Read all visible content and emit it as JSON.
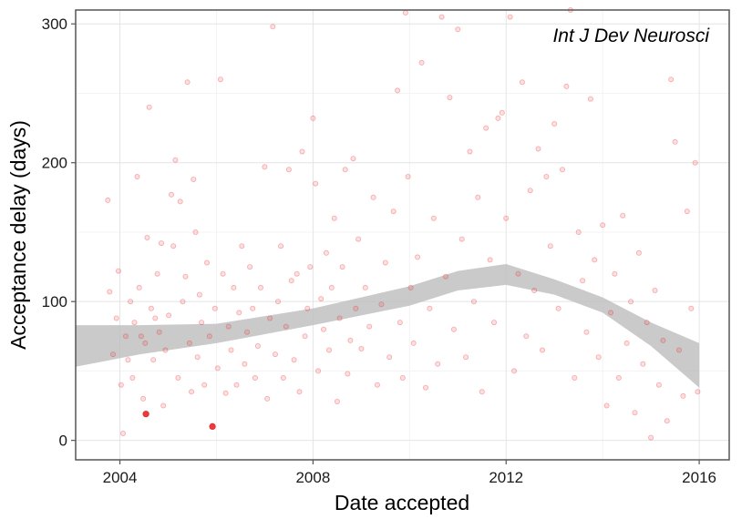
{
  "chart_data": {
    "type": "scatter",
    "title": "",
    "annotation": "Int J Dev Neurosci",
    "xlabel": "Date accepted",
    "ylabel": "Acceptance delay (days)",
    "x_ticks": [
      "2004",
      "2008",
      "2012",
      "2016"
    ],
    "y_ticks": [
      "0",
      "100",
      "200",
      "300"
    ],
    "xlim": [
      "2003-02-01",
      "2016-08-15"
    ],
    "ylim": [
      -14,
      310
    ],
    "grid": true,
    "legend": "none",
    "point_color": "#e8262a",
    "band_color": "#bdbdbd",
    "highlighted_points": [
      {
        "x": "2004-07-15",
        "y": 19
      },
      {
        "x": "2005-12-01",
        "y": 10
      }
    ],
    "smooth_band": [
      {
        "x": "2003-02-01",
        "low": 53,
        "high": 83
      },
      {
        "x": "2004-06-01",
        "low": 62,
        "high": 83
      },
      {
        "x": "2006-01-01",
        "low": 70,
        "high": 84
      },
      {
        "x": "2008-01-01",
        "low": 83,
        "high": 95
      },
      {
        "x": "2010-01-01",
        "low": 97,
        "high": 111
      },
      {
        "x": "2011-01-01",
        "low": 108,
        "high": 122
      },
      {
        "x": "2012-01-01",
        "low": 112,
        "high": 127
      },
      {
        "x": "2013-01-01",
        "low": 105,
        "high": 116
      },
      {
        "x": "2014-01-01",
        "low": 92,
        "high": 103
      },
      {
        "x": "2015-01-01",
        "low": 68,
        "high": 85
      },
      {
        "x": "2016-01-01",
        "low": 38,
        "high": 70
      }
    ],
    "points": [
      {
        "x": "2003-10-01",
        "y": 173
      },
      {
        "x": "2003-10-15",
        "y": 107
      },
      {
        "x": "2003-11-10",
        "y": 62
      },
      {
        "x": "2003-12-05",
        "y": 88
      },
      {
        "x": "2003-12-20",
        "y": 122
      },
      {
        "x": "2004-01-10",
        "y": 40
      },
      {
        "x": "2004-01-25",
        "y": 5
      },
      {
        "x": "2004-02-15",
        "y": 75
      },
      {
        "x": "2004-03-01",
        "y": 58
      },
      {
        "x": "2004-03-20",
        "y": 100
      },
      {
        "x": "2004-04-05",
        "y": 45
      },
      {
        "x": "2004-04-20",
        "y": 85
      },
      {
        "x": "2004-05-10",
        "y": 190
      },
      {
        "x": "2004-05-25",
        "y": 110
      },
      {
        "x": "2004-06-10",
        "y": 75
      },
      {
        "x": "2004-06-25",
        "y": 30
      },
      {
        "x": "2004-07-10",
        "y": 70
      },
      {
        "x": "2004-07-25",
        "y": 146
      },
      {
        "x": "2004-08-10",
        "y": 240
      },
      {
        "x": "2004-08-25",
        "y": 95
      },
      {
        "x": "2004-09-10",
        "y": 58
      },
      {
        "x": "2004-09-25",
        "y": 88
      },
      {
        "x": "2004-10-10",
        "y": 120
      },
      {
        "x": "2004-10-25",
        "y": 78
      },
      {
        "x": "2004-11-10",
        "y": 142
      },
      {
        "x": "2004-11-25",
        "y": 25
      },
      {
        "x": "2004-12-10",
        "y": 65
      },
      {
        "x": "2005-01-05",
        "y": 90
      },
      {
        "x": "2005-01-25",
        "y": 177
      },
      {
        "x": "2005-02-10",
        "y": 140
      },
      {
        "x": "2005-02-25",
        "y": 202
      },
      {
        "x": "2005-03-15",
        "y": 45
      },
      {
        "x": "2005-04-01",
        "y": 172
      },
      {
        "x": "2005-04-20",
        "y": 100
      },
      {
        "x": "2005-05-10",
        "y": 118
      },
      {
        "x": "2005-05-25",
        "y": 258
      },
      {
        "x": "2005-06-10",
        "y": 70
      },
      {
        "x": "2005-06-25",
        "y": 35
      },
      {
        "x": "2005-07-10",
        "y": 188
      },
      {
        "x": "2005-07-25",
        "y": 150
      },
      {
        "x": "2005-08-10",
        "y": 60
      },
      {
        "x": "2005-08-25",
        "y": 105
      },
      {
        "x": "2005-09-10",
        "y": 85
      },
      {
        "x": "2005-10-01",
        "y": 40
      },
      {
        "x": "2005-10-20",
        "y": 128
      },
      {
        "x": "2005-11-10",
        "y": 75
      },
      {
        "x": "2005-12-20",
        "y": 95
      },
      {
        "x": "2006-01-10",
        "y": 52
      },
      {
        "x": "2006-02-01",
        "y": 260
      },
      {
        "x": "2006-02-20",
        "y": 120
      },
      {
        "x": "2006-03-10",
        "y": 34
      },
      {
        "x": "2006-04-01",
        "y": 82
      },
      {
        "x": "2006-04-20",
        "y": 65
      },
      {
        "x": "2006-05-10",
        "y": 110
      },
      {
        "x": "2006-06-01",
        "y": 40
      },
      {
        "x": "2006-06-20",
        "y": 92
      },
      {
        "x": "2006-07-10",
        "y": 140
      },
      {
        "x": "2006-08-01",
        "y": 55
      },
      {
        "x": "2006-08-20",
        "y": 78
      },
      {
        "x": "2006-09-10",
        "y": 125
      },
      {
        "x": "2006-10-01",
        "y": 95
      },
      {
        "x": "2006-10-20",
        "y": 45
      },
      {
        "x": "2006-11-10",
        "y": 68
      },
      {
        "x": "2006-12-01",
        "y": 110
      },
      {
        "x": "2007-01-01",
        "y": 197
      },
      {
        "x": "2007-01-20",
        "y": 30
      },
      {
        "x": "2007-02-10",
        "y": 88
      },
      {
        "x": "2007-03-01",
        "y": 298
      },
      {
        "x": "2007-03-20",
        "y": 62
      },
      {
        "x": "2007-04-10",
        "y": 100
      },
      {
        "x": "2007-05-01",
        "y": 140
      },
      {
        "x": "2007-05-20",
        "y": 45
      },
      {
        "x": "2007-06-10",
        "y": 82
      },
      {
        "x": "2007-07-01",
        "y": 195
      },
      {
        "x": "2007-07-20",
        "y": 115
      },
      {
        "x": "2007-08-10",
        "y": 58
      },
      {
        "x": "2007-09-01",
        "y": 120
      },
      {
        "x": "2007-09-20",
        "y": 35
      },
      {
        "x": "2007-10-10",
        "y": 208
      },
      {
        "x": "2007-11-01",
        "y": 75
      },
      {
        "x": "2007-11-20",
        "y": 95
      },
      {
        "x": "2007-12-10",
        "y": 125
      },
      {
        "x": "2008-01-01",
        "y": 232
      },
      {
        "x": "2008-01-20",
        "y": 185
      },
      {
        "x": "2008-02-10",
        "y": 50
      },
      {
        "x": "2008-03-01",
        "y": 102
      },
      {
        "x": "2008-03-20",
        "y": 80
      },
      {
        "x": "2008-04-10",
        "y": 135
      },
      {
        "x": "2008-05-01",
        "y": 65
      },
      {
        "x": "2008-05-20",
        "y": 110
      },
      {
        "x": "2008-06-10",
        "y": 160
      },
      {
        "x": "2008-07-01",
        "y": 28
      },
      {
        "x": "2008-07-20",
        "y": 88
      },
      {
        "x": "2008-08-10",
        "y": 125
      },
      {
        "x": "2008-09-01",
        "y": 195
      },
      {
        "x": "2008-09-20",
        "y": 48
      },
      {
        "x": "2008-10-10",
        "y": 72
      },
      {
        "x": "2008-11-01",
        "y": 203
      },
      {
        "x": "2008-11-20",
        "y": 95
      },
      {
        "x": "2008-12-10",
        "y": 145
      },
      {
        "x": "2009-01-01",
        "y": 66
      },
      {
        "x": "2009-02-01",
        "y": 110
      },
      {
        "x": "2009-03-01",
        "y": 82
      },
      {
        "x": "2009-04-01",
        "y": 175
      },
      {
        "x": "2009-05-01",
        "y": 40
      },
      {
        "x": "2009-06-01",
        "y": 98
      },
      {
        "x": "2009-07-01",
        "y": 128
      },
      {
        "x": "2009-08-01",
        "y": 60
      },
      {
        "x": "2009-09-01",
        "y": 165
      },
      {
        "x": "2009-10-01",
        "y": 252
      },
      {
        "x": "2009-10-20",
        "y": 85
      },
      {
        "x": "2009-11-10",
        "y": 45
      },
      {
        "x": "2009-12-01",
        "y": 308
      },
      {
        "x": "2009-12-20",
        "y": 190
      },
      {
        "x": "2010-01-10",
        "y": 110
      },
      {
        "x": "2010-02-01",
        "y": 70
      },
      {
        "x": "2010-03-01",
        "y": 132
      },
      {
        "x": "2010-04-01",
        "y": 272
      },
      {
        "x": "2010-05-01",
        "y": 38
      },
      {
        "x": "2010-06-01",
        "y": 95
      },
      {
        "x": "2010-07-01",
        "y": 160
      },
      {
        "x": "2010-08-01",
        "y": 55
      },
      {
        "x": "2010-09-01",
        "y": 305
      },
      {
        "x": "2010-10-01",
        "y": 118
      },
      {
        "x": "2010-11-01",
        "y": 247
      },
      {
        "x": "2010-12-01",
        "y": 80
      },
      {
        "x": "2011-01-01",
        "y": 296
      },
      {
        "x": "2011-02-01",
        "y": 145
      },
      {
        "x": "2011-03-01",
        "y": 60
      },
      {
        "x": "2011-04-01",
        "y": 208
      },
      {
        "x": "2011-05-01",
        "y": 100
      },
      {
        "x": "2011-06-01",
        "y": 175
      },
      {
        "x": "2011-07-01",
        "y": 35
      },
      {
        "x": "2011-08-01",
        "y": 225
      },
      {
        "x": "2011-09-01",
        "y": 130
      },
      {
        "x": "2011-10-01",
        "y": 85
      },
      {
        "x": "2011-11-01",
        "y": 232
      },
      {
        "x": "2011-12-01",
        "y": 236
      },
      {
        "x": "2012-01-01",
        "y": 160
      },
      {
        "x": "2012-02-01",
        "y": 305
      },
      {
        "x": "2012-03-01",
        "y": 50
      },
      {
        "x": "2012-04-01",
        "y": 120
      },
      {
        "x": "2012-05-01",
        "y": 258
      },
      {
        "x": "2012-06-01",
        "y": 75
      },
      {
        "x": "2012-07-01",
        "y": 180
      },
      {
        "x": "2012-08-01",
        "y": 108
      },
      {
        "x": "2012-09-01",
        "y": 210
      },
      {
        "x": "2012-10-01",
        "y": 65
      },
      {
        "x": "2012-11-01",
        "y": 190
      },
      {
        "x": "2012-12-01",
        "y": 140
      },
      {
        "x": "2013-01-01",
        "y": 228
      },
      {
        "x": "2013-02-01",
        "y": 95
      },
      {
        "x": "2013-03-01",
        "y": 195
      },
      {
        "x": "2013-04-01",
        "y": 255
      },
      {
        "x": "2013-05-01",
        "y": 310
      },
      {
        "x": "2013-06-01",
        "y": 45
      },
      {
        "x": "2013-07-01",
        "y": 150
      },
      {
        "x": "2013-08-01",
        "y": 115
      },
      {
        "x": "2013-09-01",
        "y": 78
      },
      {
        "x": "2013-10-01",
        "y": 246
      },
      {
        "x": "2013-11-01",
        "y": 130
      },
      {
        "x": "2013-12-01",
        "y": 60
      },
      {
        "x": "2014-01-01",
        "y": 155
      },
      {
        "x": "2014-02-01",
        "y": 25
      },
      {
        "x": "2014-03-01",
        "y": 92
      },
      {
        "x": "2014-04-01",
        "y": 120
      },
      {
        "x": "2014-05-01",
        "y": 45
      },
      {
        "x": "2014-06-01",
        "y": 162
      },
      {
        "x": "2014-07-01",
        "y": 70
      },
      {
        "x": "2014-08-01",
        "y": 100
      },
      {
        "x": "2014-09-01",
        "y": 20
      },
      {
        "x": "2014-10-01",
        "y": 135
      },
      {
        "x": "2014-11-01",
        "y": 55
      },
      {
        "x": "2014-12-01",
        "y": 85
      },
      {
        "x": "2015-01-01",
        "y": 2
      },
      {
        "x": "2015-02-01",
        "y": 108
      },
      {
        "x": "2015-03-01",
        "y": 40
      },
      {
        "x": "2015-04-01",
        "y": 72
      },
      {
        "x": "2015-05-01",
        "y": 14
      },
      {
        "x": "2015-06-01",
        "y": 260
      },
      {
        "x": "2015-07-01",
        "y": 215
      },
      {
        "x": "2015-08-01",
        "y": 65
      },
      {
        "x": "2015-09-01",
        "y": 32
      },
      {
        "x": "2015-10-01",
        "y": 165
      },
      {
        "x": "2015-11-01",
        "y": 95
      },
      {
        "x": "2015-12-01",
        "y": 200
      },
      {
        "x": "2015-12-20",
        "y": 35
      }
    ]
  }
}
